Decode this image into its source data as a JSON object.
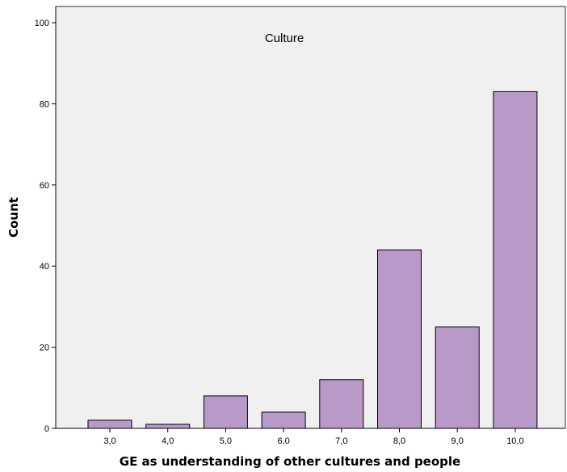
{
  "chart_data": {
    "type": "bar",
    "title": "",
    "annotation": "Culture",
    "xlabel": "GE as understanding of other cultures and people",
    "ylabel": "Count",
    "categories": [
      "3,0",
      "4,0",
      "5,0",
      "6,0",
      "7,0",
      "8,0",
      "9,0",
      "10,0"
    ],
    "values": [
      2,
      1,
      8,
      4,
      12,
      44,
      25,
      83
    ],
    "ylim": [
      0,
      104
    ],
    "yticks": [
      0,
      20,
      40,
      60,
      80,
      100
    ],
    "grid": false,
    "legend": "none",
    "colors": {
      "plot_background": "#f0f0f0",
      "bar_fill": "#b89ac8",
      "bar_stroke": "#000000"
    }
  }
}
